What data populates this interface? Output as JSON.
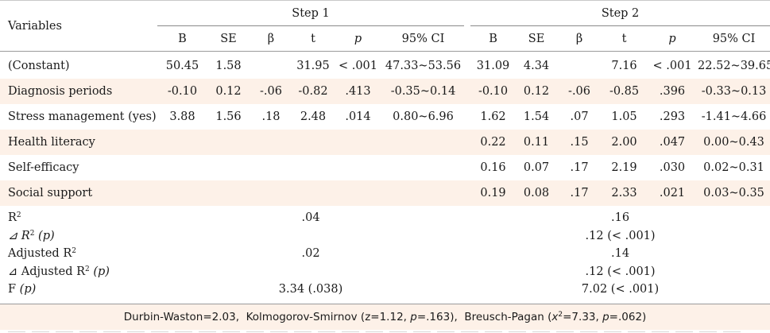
{
  "table": {
    "variables_header": "Variables",
    "step1_label": "Step 1",
    "step2_label": "Step 2",
    "sub_headers": [
      "B",
      "SE",
      "β",
      "t",
      "p",
      "95% CI"
    ],
    "rows": [
      {
        "label": "(Constant)",
        "shade": false,
        "s1": [
          "50.45",
          "1.58",
          "",
          "31.95",
          "< .001",
          "47.33~53.56"
        ],
        "s2": [
          "31.09",
          "4.34",
          "",
          "7.16",
          "< .001",
          "22.52~39.65"
        ]
      },
      {
        "label": "Diagnosis periods",
        "shade": true,
        "s1": [
          "-0.10",
          "0.12",
          "-.06",
          "-0.82",
          ".413",
          "-0.35~0.14"
        ],
        "s2": [
          "-0.10",
          "0.12",
          "-.06",
          "-0.85",
          ".396",
          "-0.33~0.13"
        ]
      },
      {
        "label": "Stress management (yes)",
        "shade": false,
        "s1": [
          "3.88",
          "1.56",
          ".18",
          "2.48",
          ".014",
          "0.80~6.96"
        ],
        "s2": [
          "1.62",
          "1.54",
          ".07",
          "1.05",
          ".293",
          "-1.41~4.66"
        ]
      },
      {
        "label": "Health literacy",
        "shade": true,
        "s1": [
          "",
          "",
          "",
          "",
          "",
          ""
        ],
        "s2": [
          "0.22",
          "0.11",
          ".15",
          "2.00",
          ".047",
          "0.00~0.43"
        ]
      },
      {
        "label": "Self-efficacy",
        "shade": false,
        "s1": [
          "",
          "",
          "",
          "",
          "",
          ""
        ],
        "s2": [
          "0.16",
          "0.07",
          ".17",
          "2.19",
          ".030",
          "0.02~0.31"
        ]
      },
      {
        "label": "Social support",
        "shade": true,
        "s1": [
          "",
          "",
          "",
          "",
          "",
          ""
        ],
        "s2": [
          "0.19",
          "0.08",
          ".17",
          "2.33",
          ".021",
          "0.03~0.35"
        ]
      }
    ],
    "fit": {
      "r2": {
        "label": "R",
        "sup": "2",
        "suffix": "",
        "s1": ".04",
        "s2": ".16"
      },
      "delta_r2": {
        "label": "⊿ R",
        "sup": "2",
        "suffix": " (p)",
        "s1": "",
        "s2": ".12 (< .001)"
      },
      "adj_r2": {
        "label": "Adjusted R",
        "sup": "2",
        "suffix": "",
        "s1": ".02",
        "s2": ".14"
      },
      "delta_adj_r2": {
        "label": "⊿ Adjusted R",
        "sup": "2",
        "suffix": " (p)",
        "s1": "",
        "s2": ".12 (< .001)"
      },
      "f": {
        "label": "F",
        "sup": "",
        "suffix": " (p)",
        "s1": "3.34 (.038)",
        "s2": "7.02 (< .001)"
      }
    },
    "footer": {
      "dw": "Durbin-Waston=2.03,",
      "ks_a": "Kolmogorov-Smirnov (z=1.12,",
      "ks_p": "p",
      "ks_b": "=.163),",
      "bp_a": "Breusch-Pagan (",
      "bp_chi": "x",
      "bp_sup": "2",
      "bp_b": "=7.33,",
      "bp_p": "p",
      "bp_c": "=.062)"
    }
  }
}
